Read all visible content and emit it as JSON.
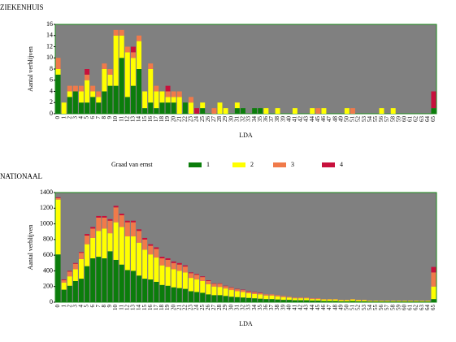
{
  "legend": {
    "title": "Graad van ernst",
    "names": [
      "1",
      "2",
      "3",
      "4"
    ],
    "colors": [
      "#0b7d0b",
      "#ffff00",
      "#f07a4a",
      "#c8103c"
    ]
  },
  "chart_data": [
    {
      "type": "bar",
      "stacked": true,
      "title": "ZIEKENHUIS",
      "y_label": "Aantal verblijven",
      "x_label": "LDA",
      "categories": [
        "0",
        "1",
        "2",
        "3",
        "4",
        "5",
        "6",
        "7",
        "8",
        "9",
        "10",
        "11",
        "12",
        "13",
        "14",
        "15",
        "16",
        "17",
        "18",
        "19",
        "20",
        "21",
        "22",
        "23",
        "24",
        "25",
        "26",
        "27",
        "28",
        "29",
        "30",
        "31",
        "32",
        "33",
        "34",
        "35",
        "36",
        "37",
        "38",
        "39",
        "40",
        "41",
        "42",
        "43",
        "44",
        "45",
        "46",
        "47",
        "48",
        "49",
        "50",
        "51",
        "52",
        "53",
        "54",
        "55",
        "56",
        "57",
        "58",
        "59",
        "60",
        "61",
        "62",
        "63",
        "64",
        "65"
      ],
      "ylim": [
        0,
        16
      ],
      "yticks": [
        0,
        2,
        4,
        6,
        8,
        10,
        12,
        14,
        16
      ],
      "series": [
        {
          "values": [
            7,
            0,
            3,
            4,
            2,
            2,
            3,
            2,
            4,
            5,
            5,
            10,
            3,
            5,
            8,
            1,
            2,
            1,
            2,
            2,
            2,
            0,
            2,
            0,
            0,
            1,
            0,
            0,
            0,
            0,
            0,
            1,
            1,
            0,
            1,
            1,
            0,
            0,
            0,
            0,
            0,
            0,
            0,
            0,
            0,
            0,
            0,
            0,
            0,
            0,
            0,
            0,
            0,
            0,
            0,
            0,
            0,
            0,
            0,
            0,
            0,
            0,
            0,
            0,
            0,
            1
          ]
        },
        {
          "values": [
            1,
            2,
            1,
            0,
            2,
            4,
            1,
            1,
            4,
            2,
            9,
            4,
            8,
            5,
            5,
            3,
            6,
            3,
            2,
            1,
            1,
            3,
            0,
            2,
            0,
            1,
            0,
            0,
            2,
            1,
            0,
            1,
            0,
            0,
            0,
            0,
            1,
            0,
            1,
            0,
            0,
            1,
            0,
            0,
            1,
            0,
            1,
            0,
            0,
            0,
            1,
            0,
            0,
            0,
            0,
            0,
            1,
            0,
            1,
            0,
            0,
            0,
            0,
            0,
            0,
            0
          ]
        },
        {
          "values": [
            2,
            0,
            1,
            1,
            1,
            1,
            1,
            1,
            1,
            1,
            1,
            1,
            1,
            1,
            1,
            0,
            1,
            1,
            0,
            1,
            1,
            1,
            0,
            1,
            0,
            0,
            0,
            1,
            0,
            0,
            0,
            0,
            0,
            0,
            0,
            0,
            0,
            0,
            0,
            0,
            0,
            0,
            0,
            0,
            0,
            1,
            0,
            0,
            0,
            0,
            0,
            1,
            0,
            0,
            0,
            0,
            0,
            0,
            0,
            0,
            0,
            0,
            0,
            0,
            0,
            0
          ]
        },
        {
          "values": [
            0,
            0,
            0,
            0,
            0,
            1,
            0,
            0,
            0,
            0,
            0,
            0,
            0,
            1,
            0,
            0,
            0,
            0,
            0,
            1,
            0,
            0,
            0,
            0,
            1,
            0,
            0,
            0,
            0,
            0,
            0,
            0,
            0,
            0,
            0,
            0,
            0,
            0,
            0,
            0,
            0,
            0,
            0,
            0,
            0,
            0,
            0,
            0,
            0,
            0,
            0,
            0,
            0,
            0,
            0,
            0,
            0,
            0,
            0,
            0,
            0,
            0,
            0,
            0,
            0,
            3
          ]
        }
      ]
    },
    {
      "type": "bar",
      "stacked": true,
      "title": "NATIONAAL",
      "y_label": "Aantal verblijven",
      "x_label": "LDA",
      "categories": [
        "0",
        "1",
        "2",
        "3",
        "4",
        "5",
        "6",
        "7",
        "8",
        "9",
        "10",
        "11",
        "12",
        "13",
        "14",
        "15",
        "16",
        "17",
        "18",
        "19",
        "20",
        "21",
        "22",
        "23",
        "24",
        "25",
        "26",
        "27",
        "28",
        "29",
        "30",
        "31",
        "32",
        "33",
        "34",
        "35",
        "36",
        "37",
        "38",
        "39",
        "40",
        "41",
        "42",
        "43",
        "44",
        "45",
        "46",
        "47",
        "48",
        "49",
        "50",
        "51",
        "52",
        "53",
        "54",
        "55",
        "56",
        "57",
        "58",
        "59",
        "60",
        "61",
        "62",
        "63",
        "64",
        "65"
      ],
      "ylim": [
        0,
        1400
      ],
      "yticks": [
        0,
        200,
        400,
        600,
        800,
        1000,
        1200,
        1400
      ],
      "series": [
        {
          "values": [
            610,
            160,
            210,
            270,
            300,
            460,
            560,
            580,
            560,
            650,
            540,
            480,
            410,
            400,
            340,
            300,
            290,
            260,
            220,
            210,
            190,
            180,
            170,
            140,
            130,
            120,
            100,
            90,
            90,
            80,
            70,
            65,
            60,
            55,
            50,
            45,
            40,
            40,
            35,
            30,
            30,
            25,
            25,
            25,
            20,
            20,
            15,
            15,
            15,
            10,
            10,
            15,
            10,
            10,
            8,
            8,
            8,
            8,
            8,
            8,
            8,
            8,
            8,
            8,
            8,
            40
          ]
        },
        {
          "values": [
            700,
            90,
            120,
            150,
            250,
            280,
            260,
            330,
            380,
            230,
            480,
            480,
            430,
            440,
            420,
            370,
            320,
            310,
            250,
            240,
            230,
            220,
            210,
            170,
            160,
            150,
            130,
            110,
            105,
            95,
            85,
            75,
            70,
            60,
            55,
            55,
            45,
            45,
            40,
            35,
            30,
            25,
            25,
            25,
            20,
            20,
            20,
            20,
            20,
            15,
            15,
            20,
            15,
            15,
            9,
            9,
            9,
            9,
            9,
            9,
            9,
            9,
            9,
            9,
            9,
            160
          ]
        },
        {
          "values": [
            20,
            30,
            60,
            70,
            80,
            110,
            120,
            170,
            140,
            160,
            190,
            150,
            180,
            180,
            150,
            130,
            110,
            110,
            90,
            90,
            80,
            80,
            75,
            60,
            60,
            50,
            40,
            35,
            40,
            30,
            30,
            25,
            25,
            20,
            20,
            15,
            15,
            15,
            15,
            15,
            10,
            10,
            10,
            10,
            10,
            10,
            5,
            5,
            5,
            5,
            5,
            5,
            5,
            5,
            3,
            3,
            3,
            3,
            3,
            3,
            3,
            3,
            3,
            3,
            3,
            180
          ]
        },
        {
          "values": [
            10,
            10,
            10,
            10,
            10,
            20,
            20,
            20,
            20,
            20,
            20,
            20,
            20,
            20,
            20,
            20,
            20,
            20,
            20,
            20,
            20,
            20,
            15,
            10,
            10,
            10,
            10,
            5,
            5,
            5,
            5,
            5,
            5,
            5,
            5,
            5,
            0,
            0,
            0,
            0,
            0,
            0,
            0,
            0,
            0,
            0,
            0,
            0,
            0,
            0,
            0,
            0,
            0,
            0,
            0,
            0,
            0,
            0,
            0,
            0,
            0,
            0,
            0,
            0,
            0,
            70
          ]
        }
      ]
    }
  ]
}
